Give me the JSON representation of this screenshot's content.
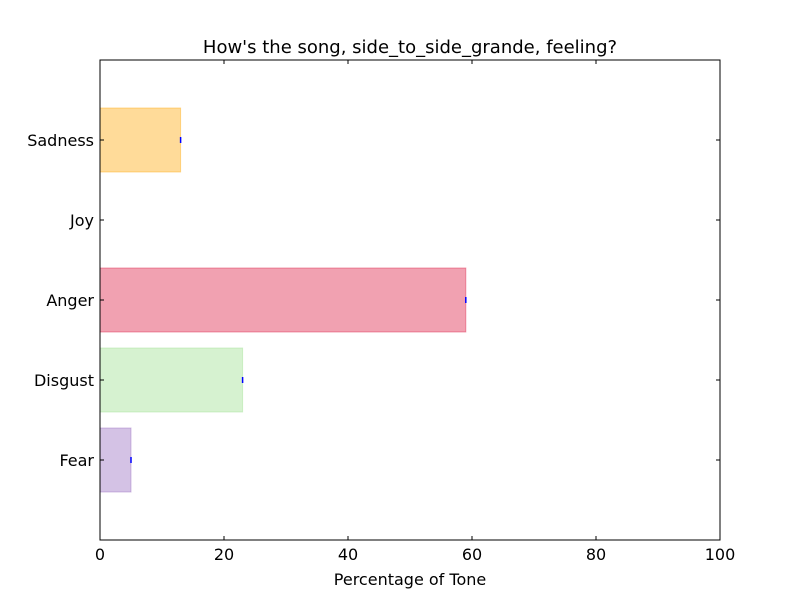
{
  "chart_data": {
    "type": "bar",
    "orientation": "horizontal",
    "title": "How's the song, side_to_side_grande, feeling?",
    "xlabel": "Percentage of Tone",
    "ylabel": "",
    "xlim": [
      0,
      100
    ],
    "x_ticks": [
      "0",
      "20",
      "40",
      "60",
      "80",
      "100"
    ],
    "categories": [
      "Fear",
      "Disgust",
      "Anger",
      "Joy",
      "Sadness"
    ],
    "values": [
      5,
      23,
      59,
      0,
      13
    ],
    "colors": {
      "Fear": "#9467bd",
      "Disgust": "#98df8a",
      "Anger": "#dc143c",
      "Joy": "#ffff00",
      "Sadness": "#ffa500"
    },
    "error_marker_color": "#0000ff",
    "grid": false,
    "legend": "none"
  }
}
